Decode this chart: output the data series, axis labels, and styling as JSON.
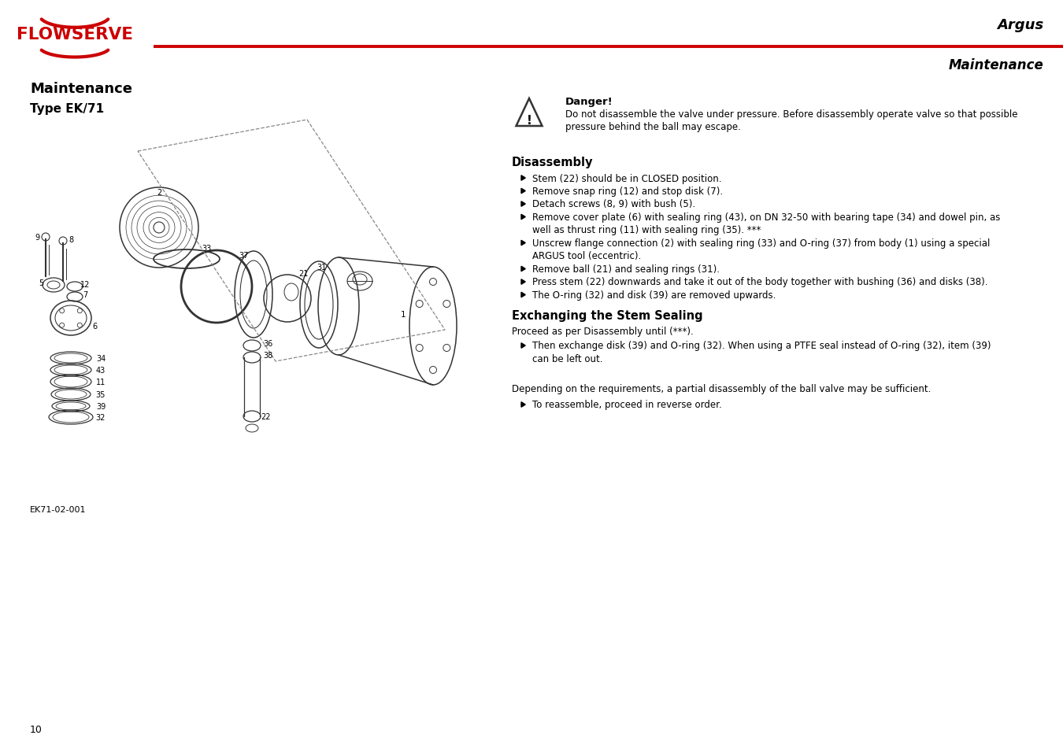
{
  "page_title_right_top": "Argus",
  "page_subtitle_right": "Maintenance",
  "header_line_color": "#CC0000",
  "logo_text": "FLOWSERVE",
  "logo_color": "#CC0000",
  "section_title": "Maintenance",
  "section_subtitle": "Type EK/71",
  "danger_title": "Danger!",
  "danger_text_line1": "Do not disassemble the valve under pressure. Before disassembly operate valve so that possible",
  "danger_text_line2": "pressure behind the ball may escape.",
  "disassembly_title": "Disassembly",
  "exchange_title": "Exchanging the Stem Sealing",
  "exchange_intro": "Proceed as per Disassembly until (***).",
  "footer_note": "Depending on the requirements, a partial disassembly of the ball valve may be sufficient.",
  "reassemble_bullet": "To reassemble, proceed in reverse order.",
  "part_number": "EK71-02-001",
  "page_number": "10",
  "bg_color": "#FFFFFF",
  "text_color": "#000000",
  "red_color": "#CC0000",
  "dark_color": "#333333",
  "bullet_data": [
    [
      true,
      "Stem (22) should be in CLOSED position."
    ],
    [
      true,
      "Remove snap ring (12) and stop disk (7)."
    ],
    [
      true,
      "Detach screws (8, 9) with bush (5)."
    ],
    [
      true,
      "Remove cover plate (6) with sealing ring (43), on DN 32-50 with bearing tape (34) and dowel pin, as"
    ],
    [
      false,
      "well as thrust ring (11) with sealing ring (35). ***"
    ],
    [
      true,
      "Unscrew flange connection (2) with sealing ring (33) and O-ring (37) from body (1) using a special"
    ],
    [
      false,
      "ARGUS tool (eccentric)."
    ],
    [
      true,
      "Remove ball (21) and sealing rings (31)."
    ],
    [
      true,
      "Press stem (22) downwards and take it out of the body together with bushing (36) and disks (38)."
    ],
    [
      true,
      "The O-ring (32) and disk (39) are removed upwards."
    ]
  ],
  "exchange_bullets": [
    [
      true,
      "Then exchange disk (39) and O-ring (32). When using a PTFE seal instead of O-ring (32), item (39)"
    ],
    [
      false,
      "can be left out."
    ]
  ]
}
